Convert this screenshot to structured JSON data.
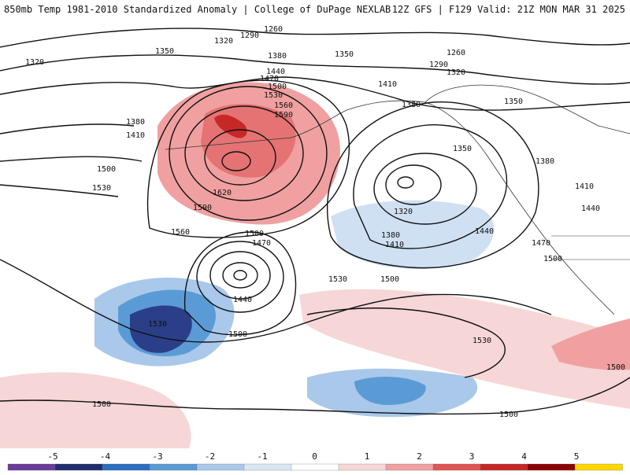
{
  "header": {
    "title_left": "850mb Temp 1981-2010 Standardized Anomaly | College of DuPage NEXLAB",
    "title_right": "12Z GFS | F129 Valid: 21Z MON MAR 31 2025"
  },
  "colorbar": {
    "ticks": [
      "-5",
      "-4",
      "-3",
      "-2",
      "-1",
      "0",
      "1",
      "2",
      "3",
      "4",
      "5"
    ],
    "colors": [
      "#6a3d9a",
      "#1f2d6e",
      "#2b6fbf",
      "#5b9bd5",
      "#a9c8ea",
      "#d9e7f5",
      "#ffffff",
      "#f6d6d6",
      "#f0a0a0",
      "#e05555",
      "#c62828",
      "#8b0000",
      "#ffd700"
    ]
  },
  "contours": {
    "labels": [
      "1260",
      "1290",
      "1320",
      "1350",
      "1380",
      "1410",
      "1440",
      "1470",
      "1500",
      "1530",
      "1560",
      "1590",
      "1620"
    ]
  }
}
